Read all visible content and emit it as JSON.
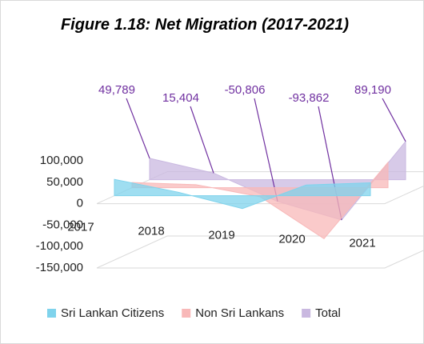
{
  "chart_data": {
    "type": "area3d",
    "title": "Figure 1.18:  Net Migration (2017-2021)",
    "categories": [
      "2017",
      "2018",
      "2019",
      "2020",
      "2021"
    ],
    "series": [
      {
        "name": "Sri Lankan Citizens",
        "color": "#7fd3ec",
        "values": [
          38000,
          8000,
          -30000,
          25000,
          30000
        ]
      },
      {
        "name": "Non  Sri Lankans",
        "color": "#f8b8b8",
        "values": [
          12000,
          7000,
          -21000,
          -119000,
          59000
        ]
      },
      {
        "name": "Total",
        "color": "#c9b8e0",
        "values": [
          49789,
          15404,
          -50806,
          -93862,
          89190
        ],
        "value_labels": [
          "49,789",
          "15,404",
          "-50,806",
          "-93,862",
          "89,190"
        ]
      }
    ],
    "ylim": [
      -150000,
      100000
    ],
    "yticks": [
      {
        "value": -150000,
        "label": "-150,000"
      },
      {
        "value": -100000,
        "label": "-100,000"
      },
      {
        "value": -50000,
        "label": "-50,000"
      },
      0,
      {
        "value": 50000,
        "label": "50,000"
      },
      {
        "value": 100000,
        "label": "100,000"
      }
    ],
    "label_color": "#7030a0"
  }
}
